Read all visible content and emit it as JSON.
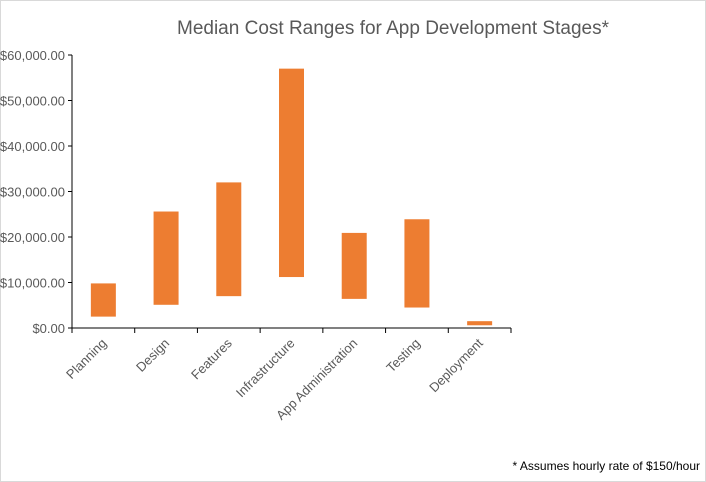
{
  "chart_data": {
    "type": "bar",
    "subtype": "floating-range",
    "title": "Median Cost Ranges for App Development Stages*",
    "footnote": "* Assumes hourly rate of $150/hour",
    "categories": [
      "Planning",
      "Design",
      "Features",
      "Infrastructure",
      "App Administration",
      "Testing",
      "Deployment"
    ],
    "series": [
      {
        "low": [
          2500,
          5100,
          7000,
          11200,
          6400,
          4500,
          600
        ],
        "high": [
          9800,
          25600,
          32000,
          57000,
          20900,
          23900,
          1500
        ]
      }
    ],
    "ylim": [
      0,
      60000
    ],
    "yticks": [
      "$0.00",
      "$10,000.00",
      "$20,000.00",
      "$30,000.00",
      "$40,000.00",
      "$50,000.00",
      "$60,000.00"
    ],
    "grid": false,
    "bar_color": "#ED7D31",
    "axis_color": "#000000"
  }
}
